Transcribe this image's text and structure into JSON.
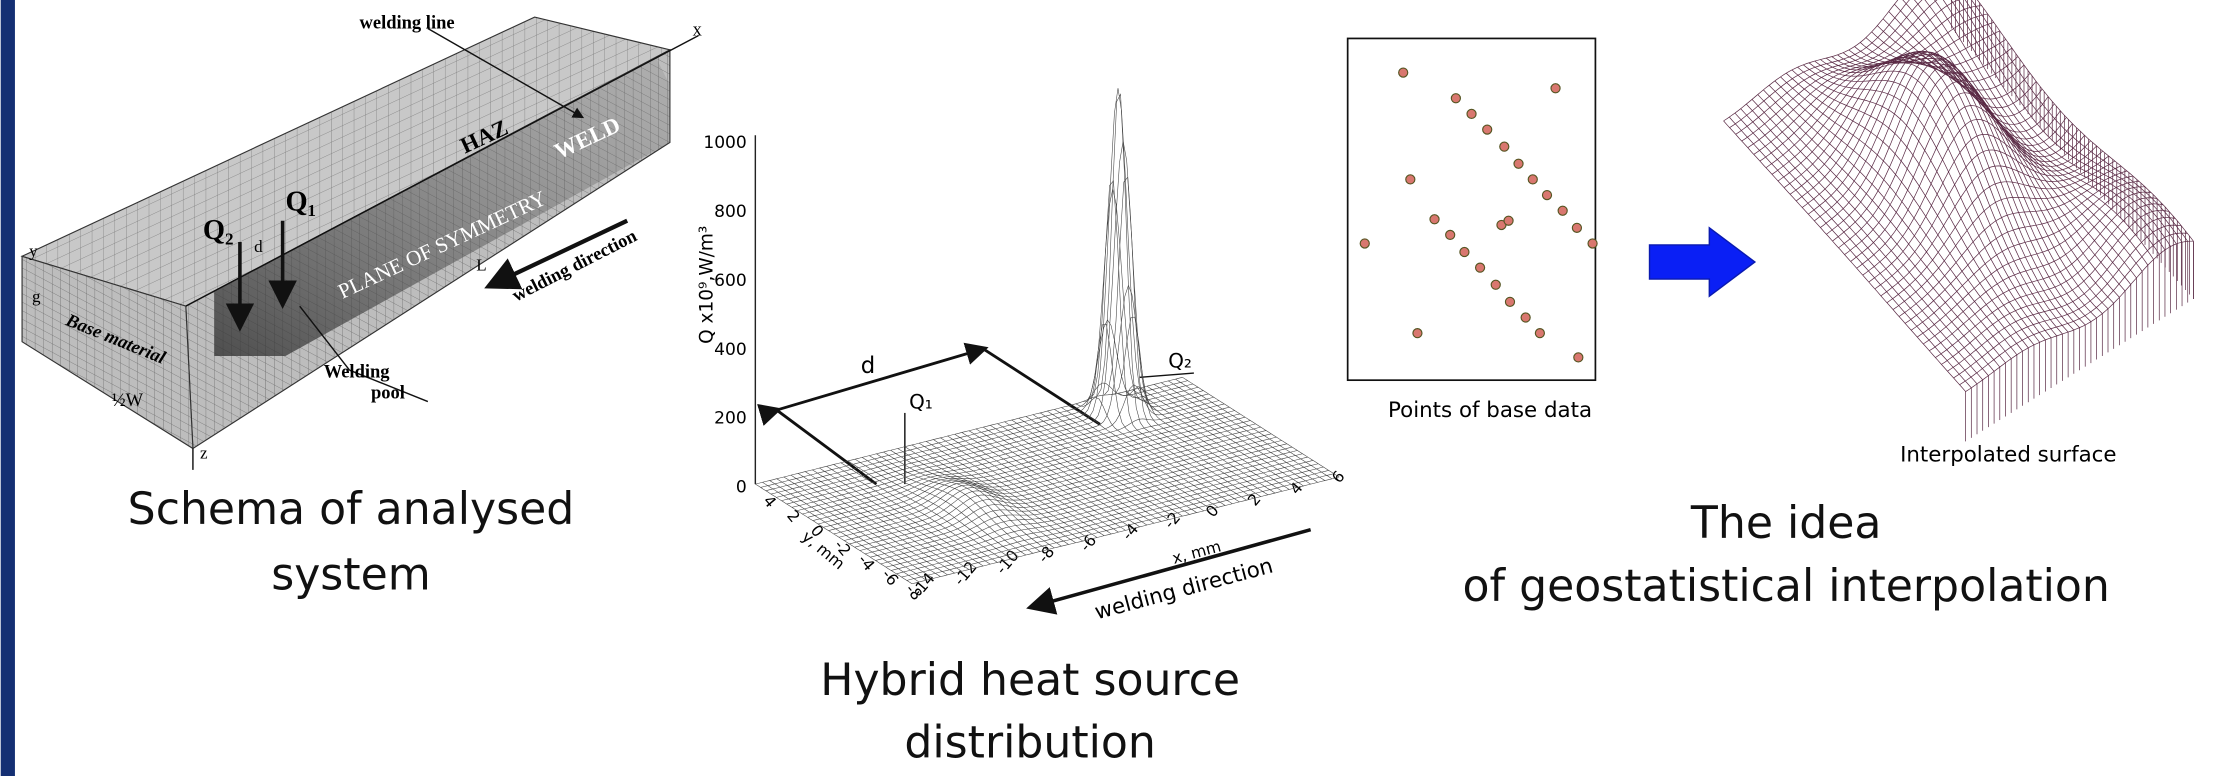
{
  "schema": {
    "welding_line": "welding line",
    "x": "x",
    "haz": "HAZ",
    "weld": "WELD",
    "plane": "PLANE OF SYMMETRY",
    "q2": "Q₂",
    "q1": "Q₁",
    "d": "d",
    "l": "L",
    "welding_direction": "welding direction",
    "y": "y",
    "g": "g",
    "base_material": "Base material",
    "half_w": "½W",
    "z": "z",
    "welding_pool": [
      "Welding",
      "pool"
    ],
    "caption": [
      "Schema of analysed",
      "system"
    ]
  },
  "heat_source": {
    "z_label": "Q x10⁹,W/m³",
    "z_ticks": [
      "1000",
      "800",
      "600",
      "400",
      "200",
      "0"
    ],
    "x_label": "x, mm",
    "x_ticks": [
      "-14",
      "-12",
      "-10",
      "-8",
      "-6",
      "-4",
      "-2",
      "0",
      "2",
      "4",
      "6"
    ],
    "y_label": "y, mm",
    "y_ticks": [
      "4",
      "2",
      "0",
      "-2",
      "-4",
      "-6",
      "-8"
    ],
    "d": "d",
    "q1": "Q₁",
    "q2": "Q₂",
    "welding_direction": "welding direction",
    "caption": [
      "Hybrid heat source",
      "distribution"
    ]
  },
  "geostat": {
    "points_label": "Points of base data",
    "surface_label": "Interpolated surface",
    "caption": [
      "The idea",
      "of geostatistical interpolation"
    ]
  }
}
